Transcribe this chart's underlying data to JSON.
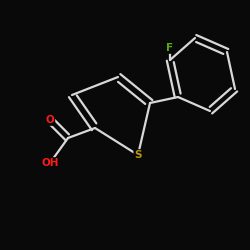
{
  "background_color": "#090909",
  "bond_color": "#d8d8d8",
  "atom_colors": {
    "O": "#ff1a1a",
    "S": "#b8960a",
    "F": "#5aaa10",
    "C": "#d8d8d8"
  },
  "figsize": [
    2.5,
    2.5
  ],
  "dpi": 100
}
